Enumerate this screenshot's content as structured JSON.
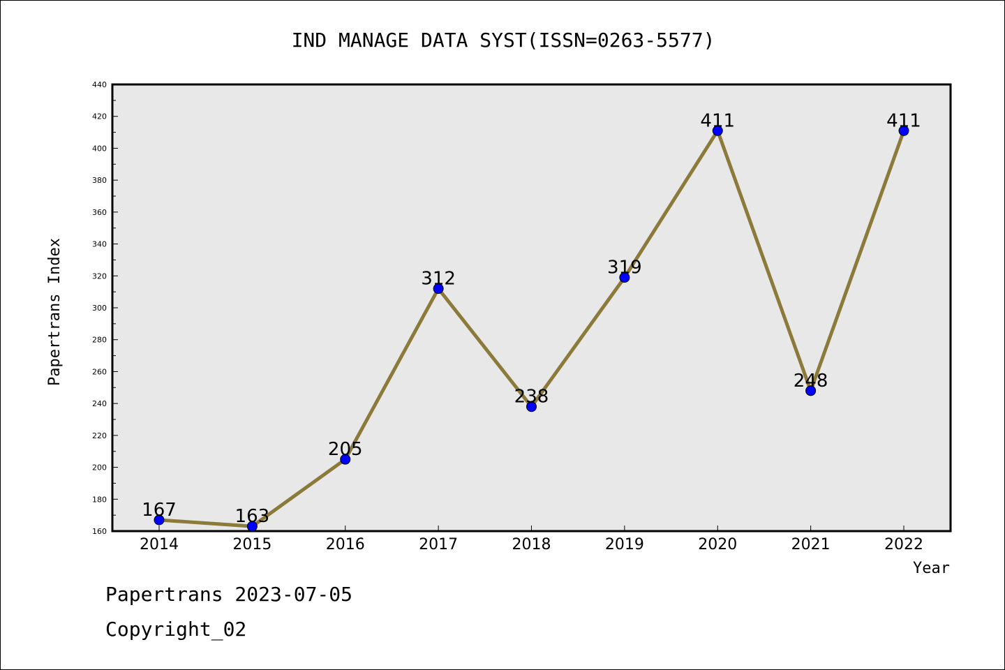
{
  "chart_data": {
    "type": "line",
    "title": "IND MANAGE DATA SYST(ISSN=0263-5577)",
    "xlabel": "Year",
    "ylabel": "Papertrans Index",
    "categories": [
      "2014",
      "2015",
      "2016",
      "2017",
      "2018",
      "2019",
      "2020",
      "2021",
      "2022"
    ],
    "series": [
      {
        "values": [
          167,
          163,
          205,
          312,
          238,
          319,
          411,
          248,
          411
        ]
      }
    ],
    "ylim": [
      160,
      440
    ],
    "yticks": [
      160,
      180,
      200,
      220,
      240,
      260,
      280,
      300,
      320,
      340,
      360,
      380,
      400,
      420,
      440
    ],
    "grid": false,
    "line_color": "#8b7a3a",
    "marker_color": "#0000ff",
    "plot_background": "#e8e8e8"
  },
  "footer": {
    "line1": "Papertrans 2023-07-05",
    "line2": "Copyright_02"
  }
}
